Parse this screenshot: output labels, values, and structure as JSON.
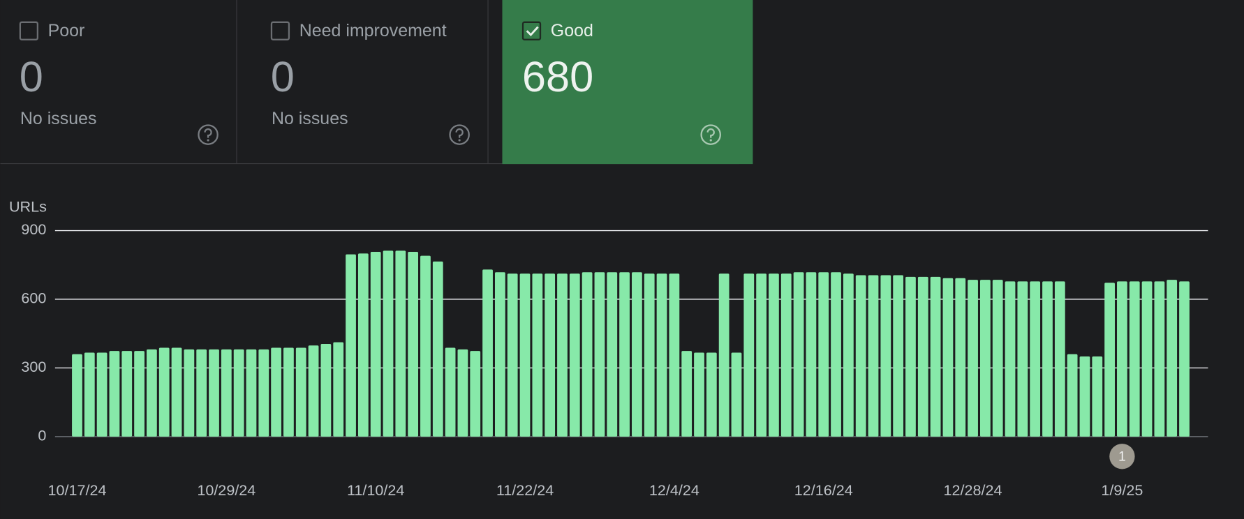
{
  "cards": [
    {
      "label": "Poor",
      "value": 0,
      "note": "No issues",
      "checked": false
    },
    {
      "label": "Need improvement",
      "value": 0,
      "note": "No issues",
      "checked": false
    },
    {
      "label": "Good",
      "value": 680,
      "checked": true
    }
  ],
  "chart_data": {
    "type": "bar",
    "y_label": "URLs",
    "color": "#87e9a9",
    "categories": [
      "10/17/24",
      null,
      null,
      null,
      null,
      null,
      null,
      null,
      null,
      null,
      null,
      null,
      "10/29/24",
      null,
      null,
      null,
      null,
      null,
      null,
      null,
      null,
      null,
      null,
      null,
      "11/10/24",
      null,
      null,
      null,
      null,
      null,
      null,
      null,
      null,
      null,
      null,
      null,
      "11/22/24",
      null,
      null,
      null,
      null,
      null,
      null,
      null,
      null,
      null,
      null,
      null,
      "12/4/24",
      null,
      null,
      null,
      null,
      null,
      null,
      null,
      null,
      null,
      null,
      null,
      "12/16/24",
      null,
      null,
      null,
      null,
      null,
      null,
      null,
      null,
      null,
      null,
      null,
      "12/28/24",
      null,
      null,
      null,
      null,
      null,
      null,
      null,
      null,
      null,
      null,
      null,
      "1/9/25",
      null,
      null,
      null,
      null,
      null
    ],
    "values": [
      360,
      367,
      367,
      374,
      374,
      374,
      381,
      388,
      388,
      381,
      381,
      381,
      381,
      381,
      381,
      381,
      388,
      388,
      388,
      398,
      405,
      412,
      796,
      800,
      807,
      812,
      812,
      807,
      790,
      765,
      388,
      381,
      374,
      730,
      718,
      712,
      712,
      712,
      712,
      712,
      712,
      718,
      718,
      718,
      718,
      718,
      712,
      712,
      712,
      374,
      367,
      367,
      712,
      367,
      712,
      712,
      712,
      712,
      718,
      718,
      718,
      718,
      712,
      705,
      705,
      705,
      705,
      698,
      698,
      698,
      692,
      692,
      685,
      685,
      685,
      678,
      678,
      678,
      678,
      678,
      360,
      350,
      350,
      672,
      678,
      678,
      678,
      678,
      685,
      678
    ],
    "ylim": [
      0,
      900
    ],
    "yticks": [
      0,
      300,
      600,
      900
    ],
    "grid": true,
    "annotations": [
      {
        "category": "1/9/25",
        "text": "1"
      }
    ]
  }
}
